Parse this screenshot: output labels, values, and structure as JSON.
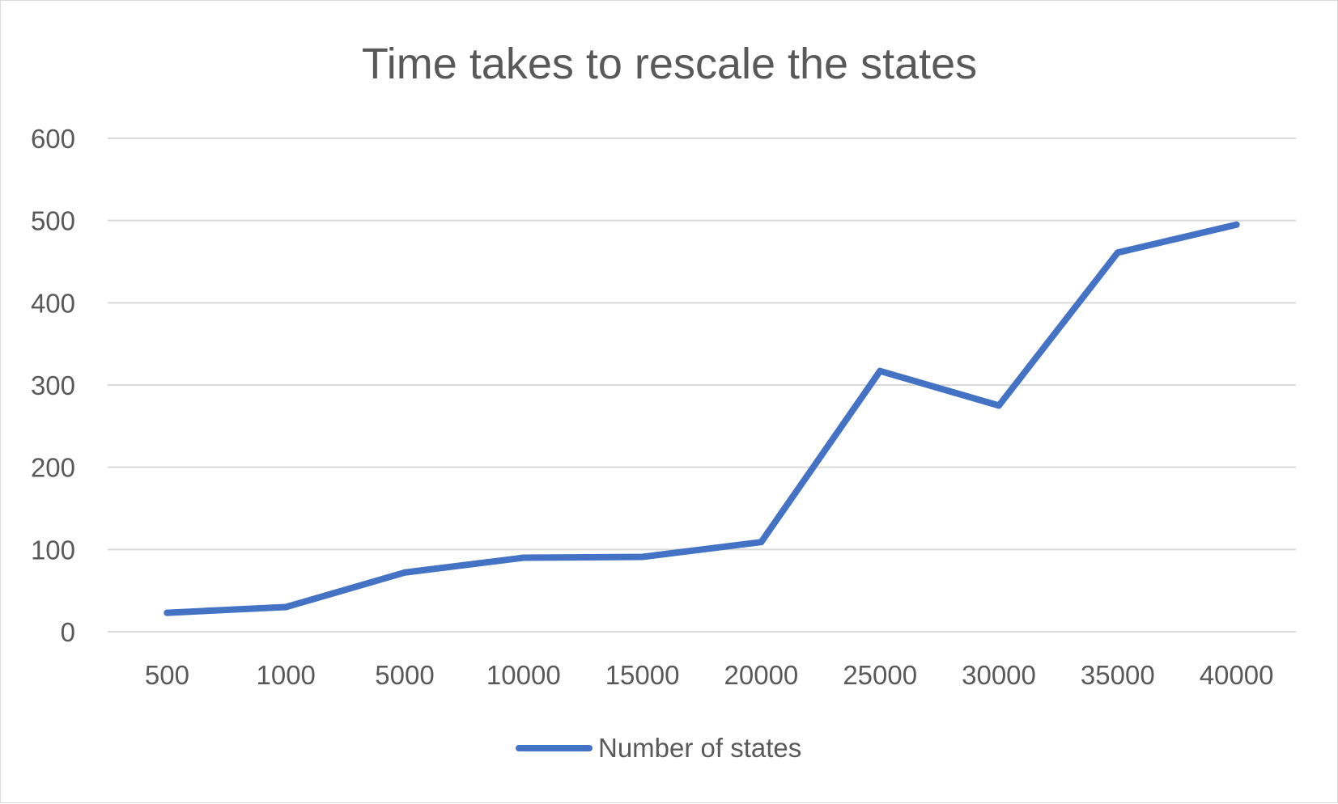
{
  "chart_data": {
    "type": "line",
    "title": "Time takes to rescale the states",
    "xlabel": "",
    "ylabel": "",
    "categories": [
      "500",
      "1000",
      "5000",
      "10000",
      "15000",
      "20000",
      "25000",
      "30000",
      "35000",
      "40000"
    ],
    "series": [
      {
        "name": "Number of states",
        "color": "#4472c4",
        "values": [
          23,
          30,
          72,
          90,
          91,
          109,
          317,
          275,
          461,
          495
        ]
      }
    ],
    "ylim": [
      0,
      600
    ],
    "yticks": [
      "0",
      "100",
      "200",
      "300",
      "400",
      "500",
      "600"
    ],
    "grid": "horizontal",
    "legend_position": "bottom"
  }
}
